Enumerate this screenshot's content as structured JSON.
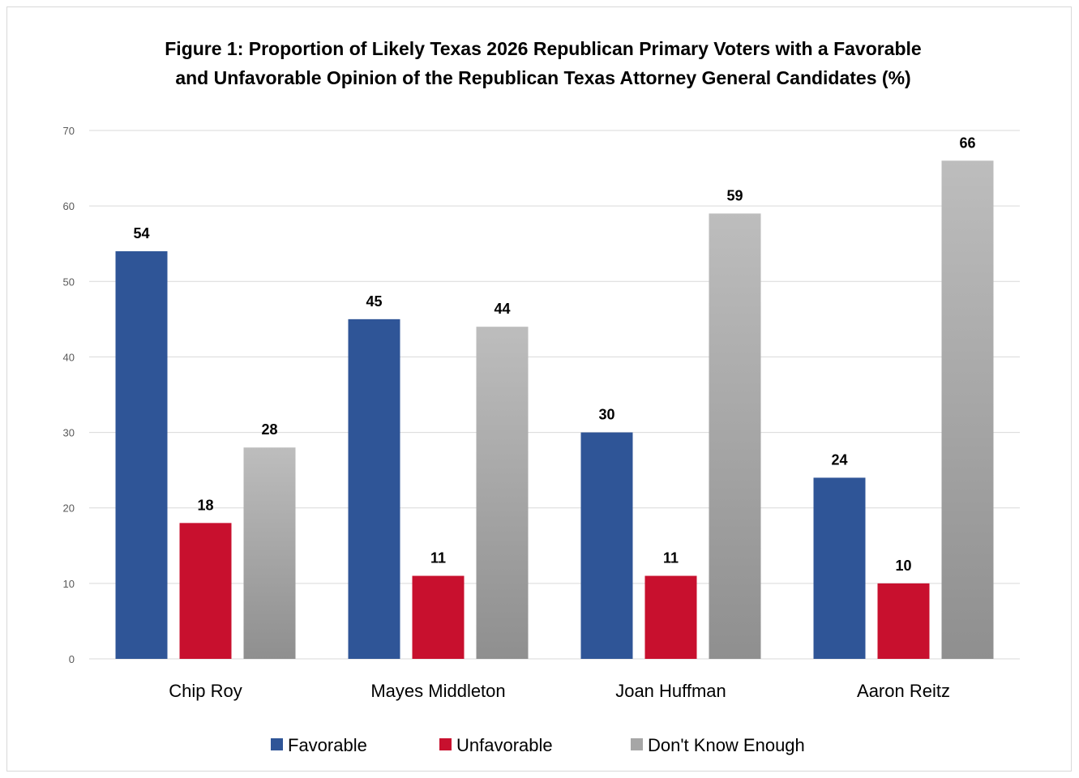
{
  "chart_data": {
    "type": "bar",
    "title": "Figure 1: Proportion of Likely Texas 2026 Republican Primary Voters with a Favorable and Unfavorable Opinion of the Republican Texas Attorney General Candidates (%)",
    "title_lines": [
      "Figure 1: Proportion of Likely Texas 2026 Republican Primary Voters with a Favorable",
      "and Unfavorable Opinion of the Republican Texas Attorney General Candidates (%)"
    ],
    "xlabel": "",
    "ylabel": "",
    "categories": [
      "Chip Roy",
      "Mayes Middleton",
      "Joan Huffman",
      "Aaron Reitz"
    ],
    "series": [
      {
        "name": "Favorable",
        "color": "#2F5597",
        "values": [
          54,
          45,
          30,
          24
        ]
      },
      {
        "name": "Unfavorable",
        "color": "#C8102E",
        "values": [
          18,
          11,
          11,
          10
        ]
      },
      {
        "name": "Don't Know Enough",
        "color": "#A6A6A6",
        "values": [
          28,
          44,
          59,
          66
        ]
      }
    ],
    "ylim": [
      0,
      70
    ],
    "yticks": [
      "0",
      "10",
      "20",
      "30",
      "40",
      "50",
      "60",
      "70"
    ],
    "grid": true,
    "data_labels": true,
    "legend_position": "bottom"
  }
}
